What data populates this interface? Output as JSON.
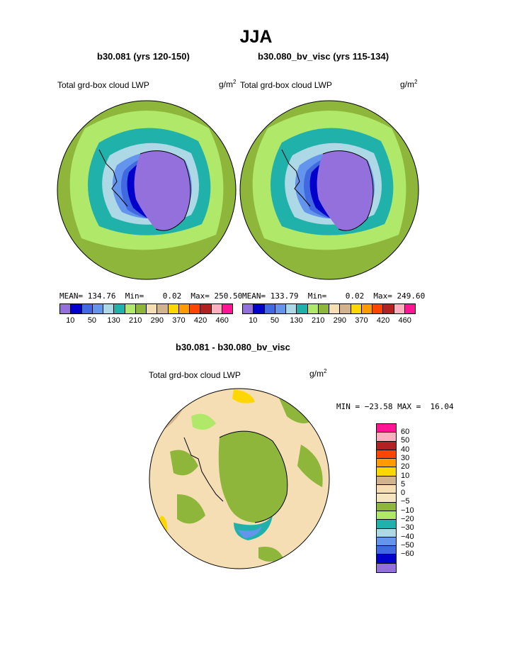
{
  "title": "JJA",
  "panel_left": {
    "case": "b30.081 (yrs 120-150)",
    "field": "Total grd-box cloud LWP",
    "unit_base": "g/m",
    "unit_exp": "2",
    "stats": "MEAN= 134.76  Min=    0.02  Max= 250.50"
  },
  "panel_right": {
    "case": "b30.080_bv_visc (yrs 115-134)",
    "field": "Total grd-box cloud LWP",
    "unit_base": "g/m",
    "unit_exp": "2",
    "stats": "MEAN= 133.79  Min=    0.02  Max= 249.60"
  },
  "panel_diff": {
    "case": "b30.081 - b30.080_bv_visc",
    "field": "Total grd-box cloud LWP",
    "unit_base": "g/m",
    "unit_exp": "2",
    "stats": "MIN = −23.58 MAX =  16.04"
  },
  "colorbar_abs": {
    "colors": [
      "#9370db",
      "#0000cd",
      "#4169e1",
      "#6495ed",
      "#add8e6",
      "#20b2aa",
      "#b0e86a",
      "#8db63a",
      "#f5deb3",
      "#d2b48c",
      "#ffd700",
      "#ff9a00",
      "#ff4500",
      "#b22222",
      "#ffb0c0",
      "#ff1493"
    ],
    "tick_labels": [
      "10",
      "50",
      "130",
      "210",
      "290",
      "370",
      "420",
      "460"
    ]
  },
  "colorbar_diff": {
    "colors": [
      "#ff1493",
      "#ffb0c0",
      "#b22222",
      "#ff4500",
      "#ff9a00",
      "#ffd700",
      "#d2b48c",
      "#f5deb3",
      "#f5e6c0",
      "#8db63a",
      "#b0e86a",
      "#20b2aa",
      "#add8e6",
      "#6495ed",
      "#4169e1",
      "#0000cd",
      "#9370db"
    ],
    "tick_labels": [
      "60",
      "50",
      "40",
      "30",
      "20",
      "10",
      "5",
      "0",
      "−5",
      "−10",
      "−20",
      "−30",
      "−40",
      "−50",
      "−60"
    ]
  }
}
